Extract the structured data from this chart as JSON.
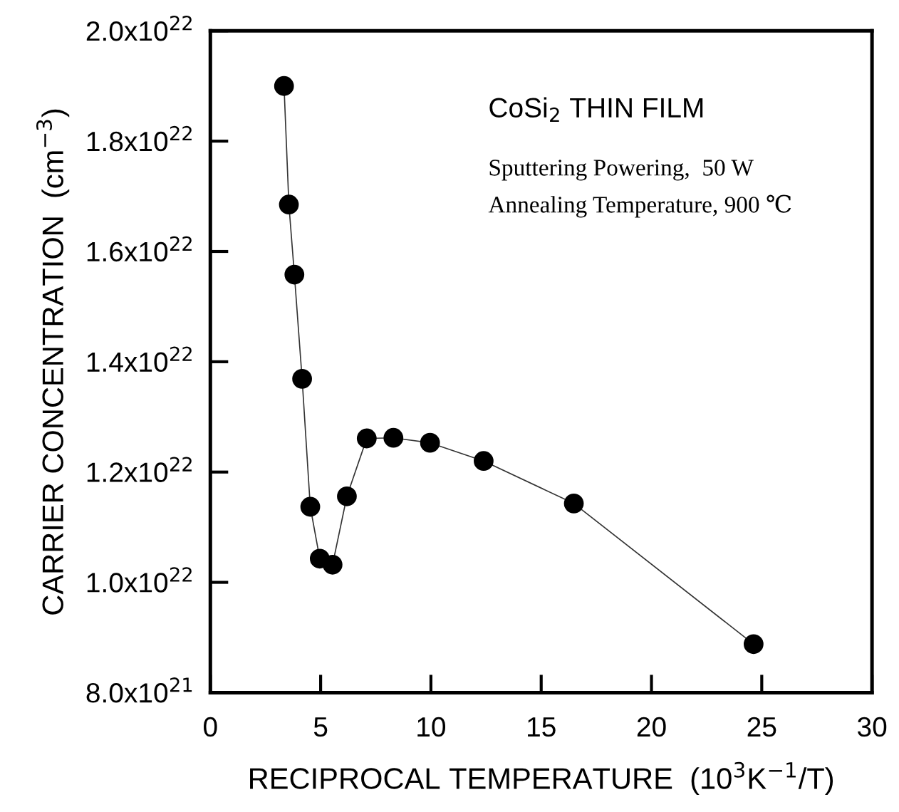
{
  "chart_data": {
    "type": "line",
    "xlabel": "RECIPROCAL TEMPERATURE  (10$^{3}$K$^{−1}$/T)",
    "ylabel": "CARRIER CONCENTRATION  (cm$^{−3}$)",
    "annotations": [
      "CoSi$_{2}$ THIN FILM",
      "Sputtering Powering,  50 W",
      "Annealing Temperature, 900 ℃"
    ],
    "series": [
      {
        "x": [
          3.34,
          3.56,
          3.81,
          4.16,
          4.53,
          4.96,
          5.54,
          6.19,
          7.09,
          8.3,
          9.96,
          12.39,
          16.48,
          24.63
        ],
        "values": [
          1.9e+22,
          1.685e+22,
          1.558e+22,
          1.369e+22,
          1.137e+22,
          1.043e+22,
          1.032e+22,
          1.156e+22,
          1.261e+22,
          1.262e+22,
          1.253e+22,
          1.22e+22,
          1.143e+22,
          8.88e+21
        ],
        "color": "#000000"
      }
    ],
    "marker": "circle",
    "line_style": "solid",
    "grid": false,
    "legend": false,
    "xlim": [
      0,
      30
    ],
    "xticks": [
      0,
      5,
      10,
      15,
      20,
      25,
      30
    ],
    "ylim": [
      8e+21,
      2e+22
    ],
    "yticks": [
      {
        "value": 8e+21,
        "label": "8.0x10$^{21}$"
      },
      {
        "value": 1e+22,
        "label": "1.0x10$^{22}$"
      },
      {
        "value": 1.2e+22,
        "label": "1.2x10$^{22}$"
      },
      {
        "value": 1.4e+22,
        "label": "1.4x10$^{22}$"
      },
      {
        "value": 1.6e+22,
        "label": "1.6x10$^{22}$"
      },
      {
        "value": 1.8e+22,
        "label": "1.8x10$^{22}$"
      },
      {
        "value": 2e+22,
        "label": "2.0x10$^{22}$"
      }
    ]
  }
}
